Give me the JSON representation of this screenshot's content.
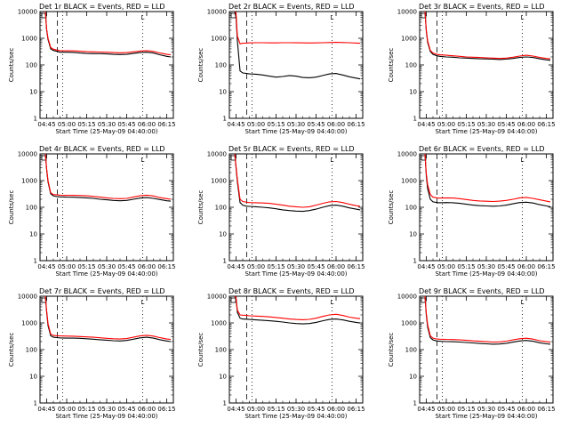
{
  "chart_data": [
    {
      "type": "line",
      "title": "Det 1r BLACK = Events, RED = LLD",
      "xlabel": "Start Time (25-May-09 04:40:00)",
      "ylabel": "Counts/sec",
      "y_scale": "log",
      "ylim": [
        1,
        10000
      ],
      "x_ticks": [
        "04:45",
        "05:00",
        "05:15",
        "05:30",
        "05:45",
        "06:00",
        "06:15"
      ],
      "y_ticks": [
        "1",
        "10",
        "100",
        "1000",
        "10000"
      ],
      "x_minutes": [
        4,
        5,
        6,
        8,
        10,
        13,
        15,
        20,
        25,
        30,
        35,
        40,
        45,
        50,
        55,
        60,
        65,
        70,
        75,
        80,
        85,
        90,
        95,
        98
      ],
      "series": [
        {
          "name": "BLACK = Events",
          "color": "#000000",
          "values": [
            10000,
            2000,
            900,
            400,
            350,
            320,
            300,
            300,
            295,
            280,
            270,
            265,
            265,
            260,
            250,
            245,
            250,
            270,
            290,
            300,
            280,
            240,
            210,
            200
          ]
        },
        {
          "name": "RED = LLD",
          "color": "#ff0000",
          "values": [
            10000,
            2100,
            1000,
            450,
            390,
            360,
            345,
            340,
            335,
            325,
            315,
            310,
            305,
            300,
            290,
            285,
            290,
            310,
            330,
            345,
            320,
            280,
            250,
            240
          ]
        }
      ]
    },
    {
      "type": "line",
      "title": "Det 2r BLACK = Events, RED = LLD",
      "xlabel": "Start Time (25-May-09 04:40:00)",
      "ylabel": "Counts/sec",
      "y_scale": "log",
      "ylim": [
        1,
        10000
      ],
      "x_ticks": [
        "04:45",
        "05:00",
        "05:15",
        "05:30",
        "05:45",
        "06:00",
        "06:15"
      ],
      "y_ticks": [
        "1",
        "10",
        "100",
        "1000",
        "10000"
      ],
      "x_minutes": [
        4,
        5,
        6,
        8,
        10,
        13,
        15,
        20,
        25,
        30,
        35,
        40,
        45,
        50,
        55,
        60,
        65,
        70,
        75,
        80,
        85,
        90,
        95,
        98
      ],
      "series": [
        {
          "name": "BLACK = Events",
          "color": "#000000",
          "values": [
            10000,
            6000,
            800,
            60,
            50,
            48,
            46,
            45,
            42,
            38,
            35,
            37,
            40,
            38,
            34,
            33,
            35,
            40,
            46,
            48,
            42,
            36,
            32,
            30
          ]
        },
        {
          "name": "RED = LLD",
          "color": "#ff0000",
          "values": [
            10000,
            9000,
            1200,
            620,
            650,
            660,
            670,
            680,
            680,
            670,
            670,
            680,
            680,
            675,
            670,
            665,
            670,
            680,
            690,
            700,
            690,
            680,
            660,
            650
          ]
        }
      ]
    },
    {
      "type": "line",
      "title": "Det 3r BLACK = Events, RED = LLD",
      "xlabel": "Start Time (25-May-09 04:40:00)",
      "ylabel": "Counts/sec",
      "y_scale": "log",
      "ylim": [
        1,
        10000
      ],
      "x_ticks": [
        "04:45",
        "05:00",
        "05:15",
        "05:30",
        "05:45",
        "06:00",
        "06:15"
      ],
      "y_ticks": [
        "1",
        "10",
        "100",
        "1000",
        "10000"
      ],
      "x_minutes": [
        4,
        5,
        6,
        8,
        10,
        13,
        15,
        20,
        25,
        30,
        35,
        40,
        45,
        50,
        55,
        60,
        65,
        70,
        75,
        80,
        85,
        90,
        95,
        98
      ],
      "series": [
        {
          "name": "BLACK = Events",
          "color": "#000000",
          "values": [
            10000,
            1800,
            700,
            320,
            250,
            220,
            210,
            200,
            195,
            185,
            180,
            175,
            170,
            168,
            165,
            160,
            165,
            175,
            190,
            200,
            190,
            170,
            155,
            150
          ]
        },
        {
          "name": "RED = LLD",
          "color": "#ff0000",
          "values": [
            10000,
            2000,
            800,
            350,
            280,
            250,
            240,
            230,
            220,
            210,
            200,
            195,
            190,
            185,
            180,
            175,
            180,
            195,
            215,
            230,
            215,
            190,
            175,
            170
          ]
        }
      ]
    },
    {
      "type": "line",
      "title": "Det 4r BLACK = Events, RED = LLD",
      "xlabel": "Start Time (25-May-09 04:40:00)",
      "ylabel": "Counts/sec",
      "y_scale": "log",
      "ylim": [
        1,
        10000
      ],
      "x_ticks": [
        "04:45",
        "05:00",
        "05:15",
        "05:30",
        "05:45",
        "06:00",
        "06:15"
      ],
      "y_ticks": [
        "1",
        "10",
        "100",
        "1000",
        "10000"
      ],
      "x_minutes": [
        4,
        5,
        6,
        8,
        10,
        13,
        15,
        20,
        25,
        30,
        35,
        40,
        45,
        50,
        55,
        60,
        65,
        70,
        75,
        80,
        85,
        90,
        95,
        98
      ],
      "series": [
        {
          "name": "BLACK = Events",
          "color": "#000000",
          "values": [
            10000,
            2500,
            900,
            320,
            270,
            250,
            245,
            240,
            238,
            230,
            225,
            215,
            200,
            190,
            180,
            175,
            180,
            200,
            220,
            230,
            215,
            195,
            175,
            170
          ]
        },
        {
          "name": "RED = LLD",
          "color": "#ff0000",
          "values": [
            10000,
            2700,
            1000,
            350,
            300,
            290,
            285,
            280,
            280,
            275,
            270,
            255,
            240,
            225,
            215,
            210,
            215,
            240,
            270,
            285,
            265,
            230,
            210,
            200
          ]
        }
      ]
    },
    {
      "type": "line",
      "title": "Det 5r BLACK = Events, RED = LLD",
      "xlabel": "Start Time (25-May-09 04:40:00)",
      "ylabel": "Counts/sec",
      "y_scale": "log",
      "ylim": [
        1,
        10000
      ],
      "x_ticks": [
        "04:45",
        "05:00",
        "05:15",
        "05:30",
        "05:45",
        "06:00",
        "06:15"
      ],
      "y_ticks": [
        "1",
        "10",
        "100",
        "1000",
        "10000"
      ],
      "x_minutes": [
        4,
        5,
        6,
        8,
        10,
        13,
        15,
        20,
        25,
        30,
        35,
        40,
        45,
        50,
        55,
        60,
        65,
        70,
        75,
        80,
        85,
        90,
        95,
        98
      ],
      "series": [
        {
          "name": "BLACK = Events",
          "color": "#000000",
          "values": [
            10000,
            3000,
            900,
            150,
            120,
            110,
            108,
            105,
            100,
            95,
            88,
            80,
            75,
            72,
            70,
            75,
            85,
            100,
            115,
            120,
            110,
            95,
            85,
            80
          ]
        },
        {
          "name": "RED = LLD",
          "color": "#ff0000",
          "values": [
            10000,
            3500,
            1100,
            200,
            165,
            155,
            150,
            148,
            145,
            140,
            130,
            120,
            110,
            105,
            100,
            105,
            120,
            140,
            160,
            165,
            150,
            130,
            115,
            110
          ]
        }
      ]
    },
    {
      "type": "line",
      "title": "Det 6r BLACK = Events, RED = LLD",
      "xlabel": "Start Time (25-May-09 04:40:00)",
      "ylabel": "Counts/sec",
      "y_scale": "log",
      "ylim": [
        1,
        10000
      ],
      "x_ticks": [
        "04:45",
        "05:00",
        "05:15",
        "05:30",
        "05:45",
        "06:00",
        "06:15"
      ],
      "y_ticks": [
        "1",
        "10",
        "100",
        "1000",
        "10000"
      ],
      "x_minutes": [
        4,
        5,
        6,
        8,
        10,
        13,
        15,
        20,
        25,
        30,
        35,
        40,
        45,
        50,
        55,
        60,
        65,
        70,
        75,
        80,
        85,
        90,
        95,
        98
      ],
      "series": [
        {
          "name": "BLACK = Events",
          "color": "#000000",
          "values": [
            10000,
            1500,
            500,
            200,
            160,
            150,
            148,
            150,
            148,
            140,
            130,
            120,
            115,
            112,
            110,
            112,
            120,
            135,
            150,
            155,
            145,
            125,
            112,
            105
          ]
        },
        {
          "name": "RED = LLD",
          "color": "#ff0000",
          "values": [
            10000,
            1800,
            700,
            300,
            240,
            225,
            220,
            225,
            222,
            210,
            195,
            180,
            172,
            168,
            165,
            170,
            180,
            200,
            225,
            235,
            215,
            190,
            170,
            160
          ]
        }
      ]
    },
    {
      "type": "line",
      "title": "Det 7r BLACK = Events, RED = LLD",
      "xlabel": "Start Time (25-May-09 04:40:00)",
      "ylabel": "Counts/sec",
      "y_scale": "log",
      "ylim": [
        1,
        10000
      ],
      "x_ticks": [
        "04:45",
        "05:00",
        "05:15",
        "05:30",
        "05:45",
        "06:00",
        "06:15"
      ],
      "y_ticks": [
        "1",
        "10",
        "100",
        "1000",
        "10000"
      ],
      "x_minutes": [
        4,
        5,
        6,
        8,
        10,
        13,
        15,
        20,
        25,
        30,
        35,
        40,
        45,
        50,
        55,
        60,
        65,
        70,
        75,
        80,
        85,
        90,
        95,
        98
      ],
      "series": [
        {
          "name": "BLACK = Events",
          "color": "#000000",
          "values": [
            10000,
            2500,
            800,
            330,
            290,
            280,
            275,
            270,
            270,
            265,
            255,
            245,
            235,
            225,
            215,
            210,
            220,
            245,
            275,
            290,
            270,
            235,
            210,
            200
          ]
        },
        {
          "name": "RED = LLD",
          "color": "#ff0000",
          "values": [
            10000,
            2800,
            950,
            380,
            340,
            330,
            325,
            320,
            318,
            310,
            300,
            290,
            278,
            265,
            255,
            250,
            260,
            290,
            325,
            345,
            320,
            280,
            250,
            240
          ]
        }
      ]
    },
    {
      "type": "line",
      "title": "Det 8r BLACK = Events, RED = LLD",
      "xlabel": "Start Time (25-May-09 04:40:00)",
      "ylabel": "Counts/sec",
      "y_scale": "log",
      "ylim": [
        1,
        10000
      ],
      "x_ticks": [
        "04:45",
        "05:00",
        "05:15",
        "05:30",
        "05:45",
        "06:00",
        "06:15"
      ],
      "y_ticks": [
        "1",
        "10",
        "100",
        "1000",
        "10000"
      ],
      "x_minutes": [
        4,
        5,
        6,
        8,
        10,
        13,
        15,
        20,
        25,
        30,
        35,
        40,
        45,
        50,
        55,
        60,
        65,
        70,
        75,
        80,
        85,
        90,
        95,
        98
      ],
      "series": [
        {
          "name": "BLACK = Events",
          "color": "#000000",
          "values": [
            10000,
            8000,
            2500,
            1500,
            1400,
            1380,
            1350,
            1300,
            1250,
            1200,
            1150,
            1080,
            1000,
            950,
            920,
            950,
            1050,
            1200,
            1350,
            1400,
            1300,
            1150,
            1050,
            1000
          ]
        },
        {
          "name": "RED = LLD",
          "color": "#ff0000",
          "values": [
            10000,
            9000,
            3000,
            2000,
            1950,
            1900,
            1850,
            1800,
            1750,
            1680,
            1600,
            1500,
            1400,
            1350,
            1320,
            1360,
            1500,
            1750,
            2000,
            2100,
            1900,
            1650,
            1500,
            1450
          ]
        }
      ]
    },
    {
      "type": "line",
      "title": "Det 9r BLACK = Events, RED = LLD",
      "xlabel": "Start Time (25-May-09 04:40:00)",
      "ylabel": "Counts/sec",
      "y_scale": "log",
      "ylim": [
        1,
        10000
      ],
      "x_ticks": [
        "04:45",
        "05:00",
        "05:15",
        "05:30",
        "05:45",
        "06:00",
        "06:15"
      ],
      "y_ticks": [
        "1",
        "10",
        "100",
        "1000",
        "10000"
      ],
      "x_minutes": [
        4,
        5,
        6,
        8,
        10,
        13,
        15,
        20,
        25,
        30,
        35,
        40,
        45,
        50,
        55,
        60,
        65,
        70,
        75,
        80,
        85,
        90,
        95,
        98
      ],
      "series": [
        {
          "name": "BLACK = Events",
          "color": "#000000",
          "values": [
            10000,
            2000,
            700,
            280,
            230,
            210,
            205,
            200,
            198,
            192,
            185,
            178,
            170,
            165,
            160,
            162,
            172,
            190,
            210,
            220,
            205,
            180,
            165,
            160
          ]
        },
        {
          "name": "RED = LLD",
          "color": "#ff0000",
          "values": [
            10000,
            2300,
            850,
            330,
            270,
            250,
            245,
            240,
            238,
            230,
            222,
            212,
            205,
            198,
            192,
            195,
            208,
            230,
            255,
            268,
            248,
            215,
            198,
            190
          ]
        }
      ]
    }
  ],
  "panel_marker": "L",
  "colors": {
    "events": "#000000",
    "lld": "#ff0000",
    "background": "#ffffff"
  }
}
